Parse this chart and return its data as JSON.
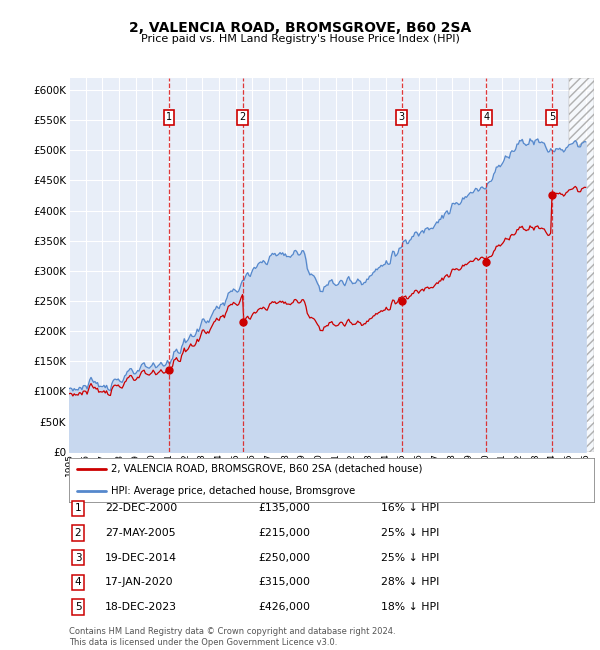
{
  "title": "2, VALENCIA ROAD, BROMSGROVE, B60 2SA",
  "subtitle": "Price paid vs. HM Land Registry's House Price Index (HPI)",
  "ylim": [
    0,
    620000
  ],
  "yticks": [
    0,
    50000,
    100000,
    150000,
    200000,
    250000,
    300000,
    350000,
    400000,
    450000,
    500000,
    550000,
    600000
  ],
  "ytick_labels": [
    "£0",
    "£50K",
    "£100K",
    "£150K",
    "£200K",
    "£250K",
    "£300K",
    "£350K",
    "£400K",
    "£450K",
    "£500K",
    "£550K",
    "£600K"
  ],
  "background_color": "#ffffff",
  "plot_bg_color": "#e8eef8",
  "grid_color": "#ffffff",
  "sale_line_color": "#cc0000",
  "hpi_line_color": "#5588cc",
  "hpi_fill_color": "#c8d8ef",
  "sales": [
    {
      "label": "1",
      "date_num": 2001.0,
      "price": 135000
    },
    {
      "label": "2",
      "date_num": 2005.42,
      "price": 215000
    },
    {
      "label": "3",
      "date_num": 2014.97,
      "price": 250000
    },
    {
      "label": "4",
      "date_num": 2020.05,
      "price": 315000
    },
    {
      "label": "5",
      "date_num": 2023.97,
      "price": 426000
    }
  ],
  "legend_entries": [
    "2, VALENCIA ROAD, BROMSGROVE, B60 2SA (detached house)",
    "HPI: Average price, detached house, Bromsgrove"
  ],
  "table_rows": [
    [
      "1",
      "22-DEC-2000",
      "£135,000",
      "16% ↓ HPI"
    ],
    [
      "2",
      "27-MAY-2005",
      "£215,000",
      "25% ↓ HPI"
    ],
    [
      "3",
      "19-DEC-2014",
      "£250,000",
      "25% ↓ HPI"
    ],
    [
      "4",
      "17-JAN-2020",
      "£315,000",
      "28% ↓ HPI"
    ],
    [
      "5",
      "18-DEC-2023",
      "£426,000",
      "18% ↓ HPI"
    ]
  ],
  "footer": "Contains HM Land Registry data © Crown copyright and database right 2024.\nThis data is licensed under the Open Government Licence v3.0.",
  "xmin": 1995,
  "xmax": 2026.5,
  "hatch_start": 2025.0
}
